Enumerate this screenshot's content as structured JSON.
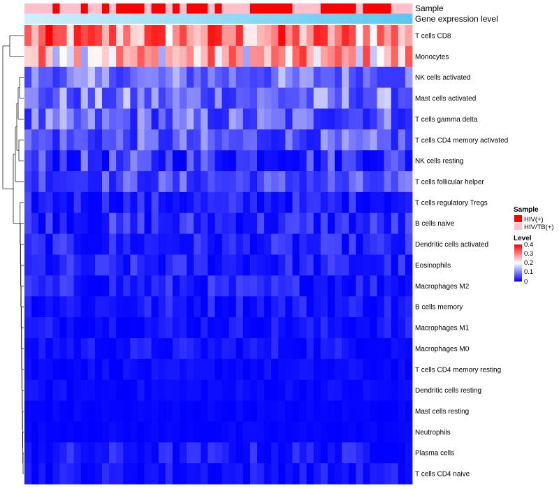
{
  "chart_data": {
    "type": "heatmap",
    "title": "",
    "annotation_rows": [
      "Sample",
      "Gene expression level"
    ],
    "sample_groups": [
      "HIV(+)",
      "HIV/TB(+)"
    ],
    "sample_colors": {
      "HIV(+)": "#ff0000",
      "HIV/TB(+)": "#ffc0cb"
    },
    "expression_gradient": [
      "#cfeffa",
      "#5bc8f0"
    ],
    "sample_annotation": [
      "HIV/TB(+)",
      "HIV/TB(+)",
      "HIV/TB(+)",
      "HIV/TB(+)",
      "HIV(+)",
      "HIV/TB(+)",
      "HIV/TB(+)",
      "HIV/TB(+)",
      "HIV(+)",
      "HIV/TB(+)",
      "HIV/TB(+)",
      "HIV(+)",
      "HIV/TB(+)",
      "HIV(+)",
      "HIV(+)",
      "HIV(+)",
      "HIV(+)",
      "HIV/TB(+)",
      "HIV(+)",
      "HIV(+)",
      "HIV/TB(+)",
      "HIV(+)",
      "HIV/TB(+)",
      "HIV(+)",
      "HIV(+)",
      "HIV(+)",
      "HIV/TB(+)",
      "HIV(+)",
      "HIV/TB(+)",
      "HIV/TB(+)",
      "HIV/TB(+)",
      "HIV/TB(+)",
      "HIV(+)",
      "HIV(+)",
      "HIV(+)",
      "HIV(+)",
      "HIV(+)",
      "HIV(+)",
      "HIV/TB(+)",
      "HIV/TB(+)",
      "HIV/TB(+)",
      "HIV/TB(+)",
      "HIV(+)",
      "HIV(+)",
      "HIV(+)",
      "HIV(+)",
      "HIV(+)",
      "HIV/TB(+)",
      "HIV(+)",
      "HIV(+)",
      "HIV(+)",
      "HIV(+)",
      "HIV/TB(+)",
      "HIV/TB(+)",
      "HIV/TB(+)"
    ],
    "legend": {
      "sample_title": "Sample",
      "level_title": "Level",
      "level_ticks": [
        "0.4",
        "0.3",
        "0.2",
        "0.1",
        "0"
      ],
      "level_range": [
        0,
        0.4
      ],
      "level_colors": [
        "#0000ff",
        "#ffffff",
        "#ff0000"
      ]
    },
    "rows": [
      "T cells CD8",
      "Monocytes",
      "NK cells activated",
      "Mast cells activated",
      "T cells gamma delta",
      "T cells CD4 memory activated",
      "NK cells resting",
      "T cells follicular helper",
      "T cells regulatory  Tregs",
      "B cells naive",
      "Dendritic cells activated",
      "Eosinophils",
      "Macrophages M2",
      "B cells memory",
      "Macrophages M1",
      "Macrophages M0",
      "T cells CD4 memory resting",
      "Dendritic cells resting",
      "Mast cells resting",
      "Neutrophils",
      "Plasma cells",
      "T cells CD4 naive"
    ],
    "row_ranges": [
      [
        0.16,
        0.4
      ],
      [
        0.12,
        0.36
      ],
      [
        0.04,
        0.16
      ],
      [
        0.03,
        0.17
      ],
      [
        0.02,
        0.15
      ],
      [
        0.02,
        0.13
      ],
      [
        0.0,
        0.11
      ],
      [
        0.02,
        0.11
      ],
      [
        0.0,
        0.06
      ],
      [
        0.0,
        0.08
      ],
      [
        0.0,
        0.06
      ],
      [
        0.0,
        0.06
      ],
      [
        0.0,
        0.06
      ],
      [
        0.0,
        0.05
      ],
      [
        0.0,
        0.04
      ],
      [
        0.0,
        0.04
      ],
      [
        0.0,
        0.02
      ],
      [
        0.0,
        0.02
      ],
      [
        0.0,
        0.01
      ],
      [
        0.0,
        0.01
      ],
      [
        0.0,
        0.05
      ],
      [
        0.0,
        0.04
      ]
    ],
    "n_samples": 55
  }
}
